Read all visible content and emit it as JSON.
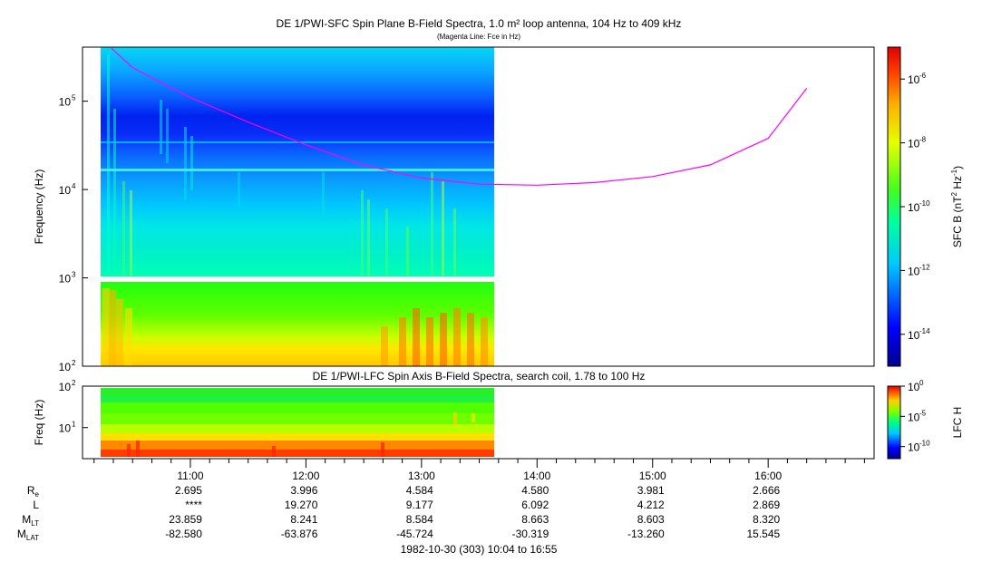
{
  "chart_data": [
    {
      "type": "heatmap",
      "title": "DE 1/PWI-SFC  Spin Plane B-Field Spectra, 1.0 m² loop antenna, 104 Hz to 409 kHz",
      "subtitle": "(Magenta Line: Fce in Hz)",
      "ylabel": "Frequency (Hz)",
      "yscale": "log",
      "ylim": [
        100,
        409000
      ],
      "ytick_labels": [
        "10",
        "10",
        "10",
        "10"
      ],
      "ytick_exponents": [
        "2",
        "3",
        "4",
        "5"
      ],
      "colorbar_label": "SFC B (nT² Hz⁻¹)",
      "colorbar_label_parts": [
        "SFC B (nT",
        "2",
        " Hz",
        "-1",
        ")"
      ],
      "colorbar_scale": "log",
      "colorbar_range": [
        1e-15,
        1e-05
      ],
      "colorbar_tick_labels": [
        "10",
        "10",
        "10",
        "10",
        "10"
      ],
      "colorbar_tick_exponents": [
        "-6",
        "-8",
        "-10",
        "-12",
        "-14"
      ],
      "data_time_range": [
        "10:04",
        "13:37"
      ],
      "fce_line": {
        "color": "#ff00ff",
        "time": [
          "10:19",
          "10:30",
          "11:00",
          "11:30",
          "12:00",
          "12:30",
          "13:00",
          "13:30",
          "14:00",
          "14:30",
          "15:00",
          "15:30",
          "16:00",
          "16:20"
        ],
        "hz": [
          398000,
          240000,
          110000,
          58000,
          32000,
          19000,
          13500,
          11500,
          11200,
          12000,
          14000,
          19000,
          38000,
          140000
        ]
      }
    },
    {
      "type": "heatmap",
      "title": "DE 1/PWI-LFC  Spin Axis B-Field Spectra, search coil, 1.78 to 100 Hz",
      "ylabel": "Freq (Hz)",
      "yscale": "log",
      "ylim": [
        1.78,
        100
      ],
      "ytick_labels": [
        "10",
        "10"
      ],
      "ytick_exponents": [
        "2",
        "1"
      ],
      "colorbar_label": "LFC H",
      "colorbar_scale": "log",
      "colorbar_range": [
        1e-12,
        1
      ],
      "colorbar_tick_labels": [
        "10",
        "10",
        "10"
      ],
      "colorbar_tick_exponents": [
        "0",
        "-5",
        "-10"
      ],
      "data_time_range": [
        "10:04",
        "13:37"
      ]
    }
  ],
  "x_axis": {
    "tick_labels": [
      "11:00",
      "12:00",
      "13:00",
      "14:00",
      "15:00",
      "16:00"
    ],
    "footer": "1982-10-30 (303) 10:04 to 16:55"
  },
  "ephemeris": {
    "labels": [
      {
        "main": "R",
        "sub": "e"
      },
      {
        "main": "L",
        "sub": ""
      },
      {
        "main": "M",
        "sub": "LT"
      },
      {
        "main": "M",
        "sub": "LAT"
      }
    ],
    "rows": [
      [
        "2.695",
        "3.996",
        "4.584",
        "4.580",
        "3.981",
        "2.666"
      ],
      [
        "****",
        "19.270",
        "9.177",
        "6.092",
        "4.212",
        "2.869"
      ],
      [
        "23.859",
        "8.241",
        "8.584",
        "8.663",
        "8.603",
        "8.320"
      ],
      [
        "-82.580",
        "-63.876",
        "-45.724",
        "-30.319",
        "-13.260",
        "15.545"
      ]
    ]
  }
}
